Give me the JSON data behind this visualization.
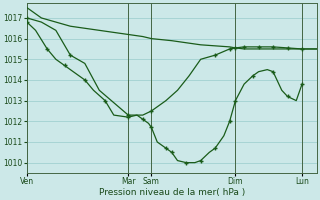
{
  "background_color": "#cce8e8",
  "grid_color": "#99cccc",
  "line_color": "#1a5c1a",
  "xlabel": "Pression niveau de la mer( hPa )",
  "ylim": [
    1009.5,
    1017.7
  ],
  "yticks": [
    1010,
    1011,
    1012,
    1013,
    1014,
    1015,
    1016,
    1017
  ],
  "xlim": [
    0,
    10
  ],
  "xtick_positions": [
    0,
    3.5,
    4.3,
    7.2,
    9.5
  ],
  "xtick_labels": [
    "Ven",
    "Mar",
    "Sam",
    "Dim",
    "Lun"
  ],
  "vline_positions": [
    0,
    3.5,
    4.3,
    7.2,
    9.5
  ],
  "line1_x": [
    0.0,
    0.5,
    1.0,
    1.5,
    2.0,
    2.5,
    3.0,
    3.5,
    4.0,
    4.3,
    5.0,
    5.5,
    6.0,
    6.5,
    7.0,
    7.2,
    7.5,
    8.0,
    8.5,
    9.0,
    9.5,
    10.0
  ],
  "line1_y": [
    1017.5,
    1017.0,
    1016.8,
    1016.6,
    1016.5,
    1016.4,
    1016.3,
    1016.2,
    1016.1,
    1016.0,
    1015.9,
    1015.8,
    1015.7,
    1015.65,
    1015.6,
    1015.55,
    1015.5,
    1015.5,
    1015.5,
    1015.5,
    1015.5,
    1015.5
  ],
  "line2_x": [
    0.0,
    0.5,
    1.0,
    1.5,
    2.0,
    2.5,
    3.0,
    3.5,
    4.0,
    4.3,
    4.8,
    5.2,
    5.6,
    6.0,
    6.5,
    7.0,
    7.2,
    7.5,
    8.0,
    8.5,
    9.0,
    9.5,
    10.0
  ],
  "line2_y": [
    1017.0,
    1016.8,
    1016.4,
    1015.2,
    1014.8,
    1013.5,
    1012.9,
    1012.3,
    1012.3,
    1012.5,
    1013.0,
    1013.5,
    1014.2,
    1015.0,
    1015.2,
    1015.5,
    1015.55,
    1015.6,
    1015.6,
    1015.6,
    1015.55,
    1015.5,
    1015.5
  ],
  "line2_markers_x": [
    0.0,
    1.5,
    3.5,
    4.3,
    6.5,
    7.0,
    7.2,
    7.5,
    8.0,
    8.5,
    9.0,
    9.5
  ],
  "line2_markers_y": [
    1017.0,
    1015.2,
    1012.3,
    1012.5,
    1015.2,
    1015.5,
    1015.55,
    1015.6,
    1015.6,
    1015.6,
    1015.55,
    1015.5
  ],
  "line3_x": [
    0.0,
    0.3,
    0.7,
    1.0,
    1.3,
    1.7,
    2.0,
    2.3,
    2.7,
    3.0,
    3.5,
    3.8,
    4.0,
    4.2,
    4.3,
    4.5,
    4.8,
    5.0,
    5.2,
    5.5,
    5.8,
    6.0,
    6.3,
    6.5,
    6.8,
    7.0,
    7.2,
    7.5,
    7.8,
    8.0,
    8.3,
    8.5,
    8.8,
    9.0,
    9.3,
    9.5
  ],
  "line3_y": [
    1016.8,
    1016.4,
    1015.5,
    1015.0,
    1014.7,
    1014.3,
    1014.0,
    1013.5,
    1013.0,
    1012.3,
    1012.2,
    1012.3,
    1012.1,
    1011.9,
    1011.7,
    1011.0,
    1010.7,
    1010.5,
    1010.1,
    1010.0,
    1010.0,
    1010.1,
    1010.5,
    1010.7,
    1011.3,
    1012.0,
    1013.0,
    1013.8,
    1014.2,
    1014.4,
    1014.5,
    1014.4,
    1013.5,
    1013.2,
    1013.0,
    1013.8
  ],
  "line3_markers_x": [
    0.0,
    0.7,
    1.3,
    2.0,
    2.7,
    3.5,
    4.0,
    4.3,
    4.8,
    5.0,
    5.5,
    6.0,
    6.5,
    7.0,
    7.2,
    7.8,
    8.5,
    9.0,
    9.5
  ],
  "line3_markers_y": [
    1016.8,
    1015.5,
    1014.7,
    1014.0,
    1013.0,
    1012.2,
    1012.1,
    1011.7,
    1010.7,
    1010.5,
    1010.0,
    1010.1,
    1010.7,
    1012.0,
    1013.0,
    1014.2,
    1014.4,
    1013.2,
    1013.8
  ]
}
